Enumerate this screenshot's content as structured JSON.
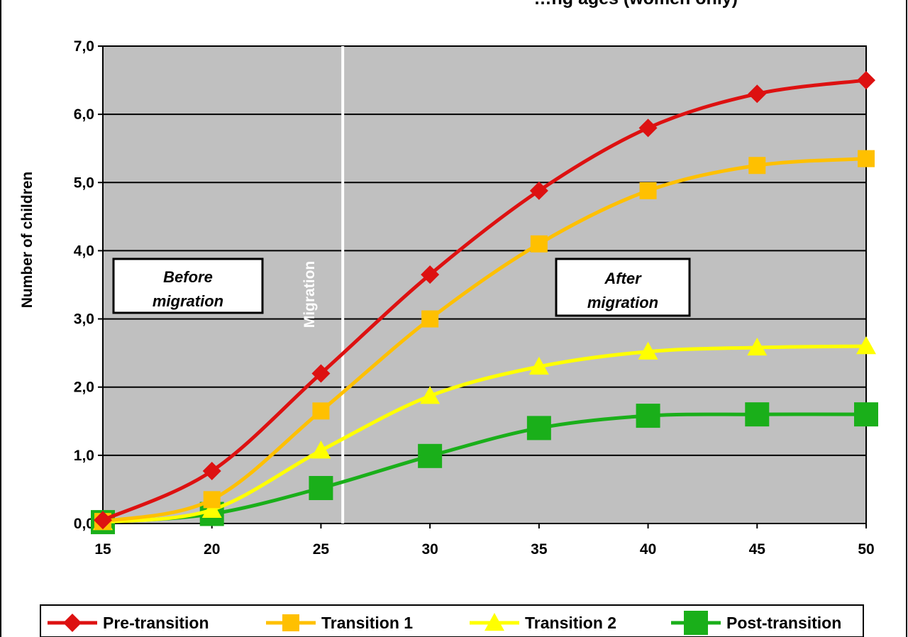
{
  "chart_data": {
    "type": "line",
    "title": "",
    "title_partial": "…ng ages (women only)",
    "xlabel": "",
    "ylabel": "Number of children",
    "x": [
      15,
      20,
      25,
      30,
      35,
      40,
      45,
      50
    ],
    "xlim": [
      15,
      50
    ],
    "ylim": [
      0,
      7
    ],
    "x_tick_labels": [
      "15",
      "20",
      "25",
      "30",
      "35",
      "40",
      "45",
      "50"
    ],
    "y_tick_labels": [
      "0,0",
      "1,0",
      "2,0",
      "3,0",
      "4,0",
      "5,0",
      "6,0",
      "7,0"
    ],
    "grid": "horizontal",
    "plot_background": "#c0c0c0",
    "legend_position": "bottom",
    "series": [
      {
        "name": "Pre-transition",
        "color": "#dd1111",
        "marker": "diamond",
        "values": [
          0.05,
          0.77,
          2.2,
          3.65,
          4.88,
          5.8,
          6.3,
          6.5
        ]
      },
      {
        "name": "Transition 1",
        "color": "#ffc000",
        "marker": "square",
        "values": [
          0.03,
          0.35,
          1.65,
          3.0,
          4.1,
          4.88,
          5.25,
          5.35
        ]
      },
      {
        "name": "Transition 2",
        "color": "#ffff00",
        "marker": "triangle",
        "values": [
          0.02,
          0.2,
          1.07,
          1.87,
          2.3,
          2.52,
          2.58,
          2.6
        ]
      },
      {
        "name": "Post-transition",
        "color": "#1aaf1a",
        "marker": "bigsquare",
        "values": [
          0.02,
          0.14,
          0.52,
          0.99,
          1.4,
          1.58,
          1.6,
          1.6
        ]
      }
    ],
    "annotations": {
      "migration_line_x": 26,
      "migration_label": "Migration",
      "before_line1": "Before",
      "before_line2": "migration",
      "after_line1": "After",
      "after_line2": "migration"
    }
  }
}
